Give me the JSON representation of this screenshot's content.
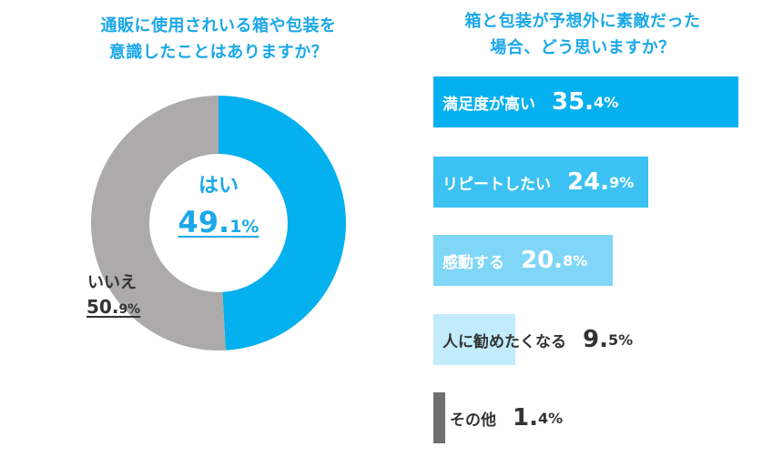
{
  "left_chart": {
    "title_line1": "通販に使用されいる箱や包装を",
    "title_line2": "意識したことはありますか？"
  },
  "right_chart": {
    "title_line1": "箱と包装が予想外に素敵だった",
    "title_line2": "場合、どう思いますか？"
  },
  "chart_data": [
    {
      "type": "pie",
      "title": "通販に使用されいる箱や包装を意識したことはありますか？",
      "slices": [
        {
          "label": "はい",
          "value": 49.1,
          "pct_main": "49.",
          "pct_decimal": "1%",
          "color": "#05b0ef"
        },
        {
          "label": "いいえ",
          "value": 50.9,
          "pct_main": "50.",
          "pct_decimal": "9%",
          "color": "#acaaaa"
        }
      ]
    },
    {
      "type": "bar",
      "orientation": "horizontal",
      "title": "箱と包装が予想外に素敵だった場合、どう思いますか？",
      "categories": [
        "満足度が高い",
        "リピートしたい",
        "感動する",
        "人に勧めたくなる",
        "その他"
      ],
      "values": [
        35.4,
        24.9,
        20.8,
        9.5,
        1.4
      ],
      "pct_main": [
        "35.",
        "24.",
        "20.",
        "9.",
        "1."
      ],
      "pct_decimal": [
        "4%",
        "9%",
        "8%",
        "5%",
        "4%"
      ],
      "colors": [
        "#05b0ef",
        "#3cc2f2",
        "#7fd6f6",
        "#c2ecfb",
        "#6f6f6f"
      ],
      "text_colors": [
        "#ffffff",
        "#ffffff",
        "#ffffff",
        "#333333",
        "#333333"
      ]
    }
  ]
}
